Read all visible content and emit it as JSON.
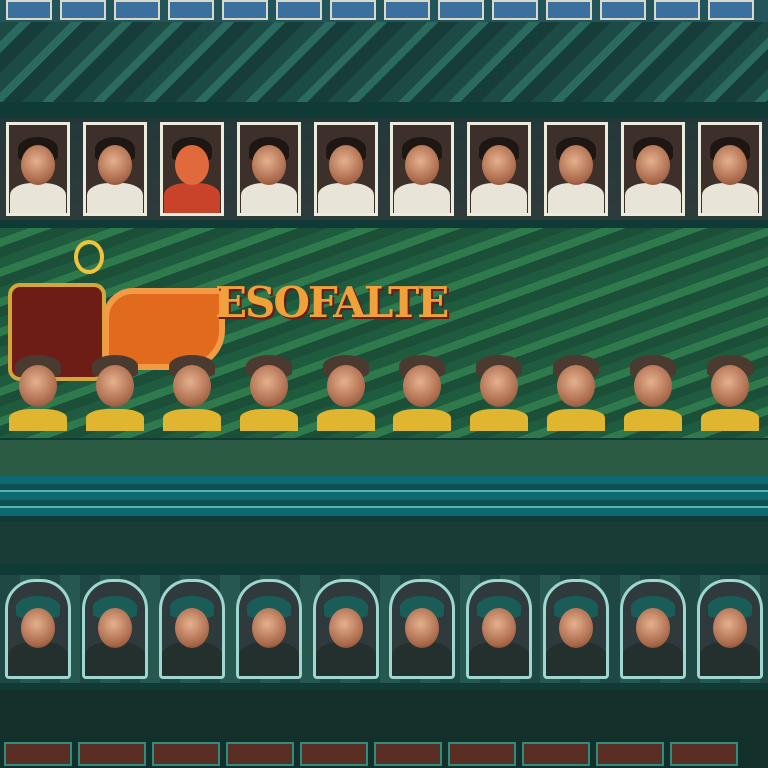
{
  "title_band": {
    "left_text": "",
    "right_text": ""
  },
  "middle": {
    "headline": "",
    "big_title": "ESOFALTE"
  },
  "banner1": {
    "text": ""
  },
  "stripes": {
    "text": ""
  },
  "banner2": {
    "text": ""
  },
  "footer": {
    "line1": "",
    "line2": ""
  },
  "palette": {
    "roof_green": "#2b6a5f",
    "gold": "#f1c33a",
    "red": "#d8412b",
    "frame_white": "#ececdd"
  },
  "icons": [
    "ring-emblem-icon",
    "shield-emblem-icon",
    "hex-badge-icon"
  ],
  "portraits": {
    "top_row": 10,
    "middle_row": 10,
    "bottom_row": 10
  }
}
